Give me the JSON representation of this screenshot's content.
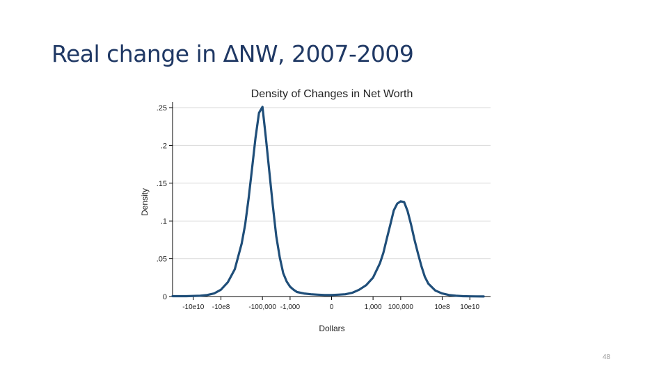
{
  "slide": {
    "title": "Real change in ΔNW, 2007-2009",
    "page_number": "48"
  },
  "colors": {
    "title": "#1f3864",
    "line": "#1f4e79",
    "grid": "#d9d9d9",
    "axis": "#000000"
  },
  "chart_data": {
    "type": "line",
    "title": "Density of Changes in Net Worth",
    "xlabel": "Dollars",
    "ylabel": "Density",
    "grid": true,
    "ylim": [
      0,
      0.25
    ],
    "xlim": [
      -11.5,
      11.5
    ],
    "yticks": [
      0,
      0.05,
      0.1,
      0.15,
      0.2,
      0.25
    ],
    "ytick_labels": [
      "0",
      ".05",
      ".1",
      ".15",
      ".2",
      ".25"
    ],
    "xticks": [
      -10,
      -8,
      -5,
      -3,
      0,
      3,
      5,
      8,
      10
    ],
    "xtick_labels": [
      "-10e10",
      "-10e8",
      "-100,000",
      "-1,000",
      "0",
      "1,000",
      "100,000",
      "10e8",
      "10e10"
    ],
    "series": [
      {
        "name": "Density",
        "x": [
          -11.5,
          -10.5,
          -9.5,
          -9.0,
          -8.5,
          -8.0,
          -7.5,
          -7.0,
          -6.5,
          -6.25,
          -6.0,
          -5.75,
          -5.5,
          -5.25,
          -5.0,
          -4.75,
          -4.5,
          -4.25,
          -4.0,
          -3.75,
          -3.5,
          -3.25,
          -3.0,
          -2.75,
          -2.5,
          -2.0,
          -1.5,
          -1.0,
          -0.5,
          0.0,
          0.5,
          1.0,
          1.5,
          2.0,
          2.5,
          3.0,
          3.5,
          3.75,
          4.0,
          4.25,
          4.5,
          4.75,
          5.0,
          5.25,
          5.5,
          5.75,
          6.0,
          6.25,
          6.5,
          6.75,
          7.0,
          7.5,
          8.0,
          8.5,
          9.0,
          9.5,
          10.0,
          10.5,
          11.0
        ],
        "values": [
          0.0005,
          0.0005,
          0.001,
          0.002,
          0.004,
          0.009,
          0.019,
          0.036,
          0.07,
          0.095,
          0.13,
          0.17,
          0.21,
          0.243,
          0.251,
          0.21,
          0.165,
          0.12,
          0.08,
          0.052,
          0.031,
          0.02,
          0.013,
          0.009,
          0.006,
          0.004,
          0.003,
          0.0025,
          0.002,
          0.002,
          0.0025,
          0.003,
          0.005,
          0.009,
          0.015,
          0.025,
          0.044,
          0.058,
          0.077,
          0.095,
          0.114,
          0.123,
          0.126,
          0.125,
          0.113,
          0.095,
          0.075,
          0.057,
          0.04,
          0.026,
          0.017,
          0.008,
          0.004,
          0.002,
          0.001,
          0.0005,
          0.0003,
          0.0002,
          0.0001
        ]
      }
    ]
  }
}
